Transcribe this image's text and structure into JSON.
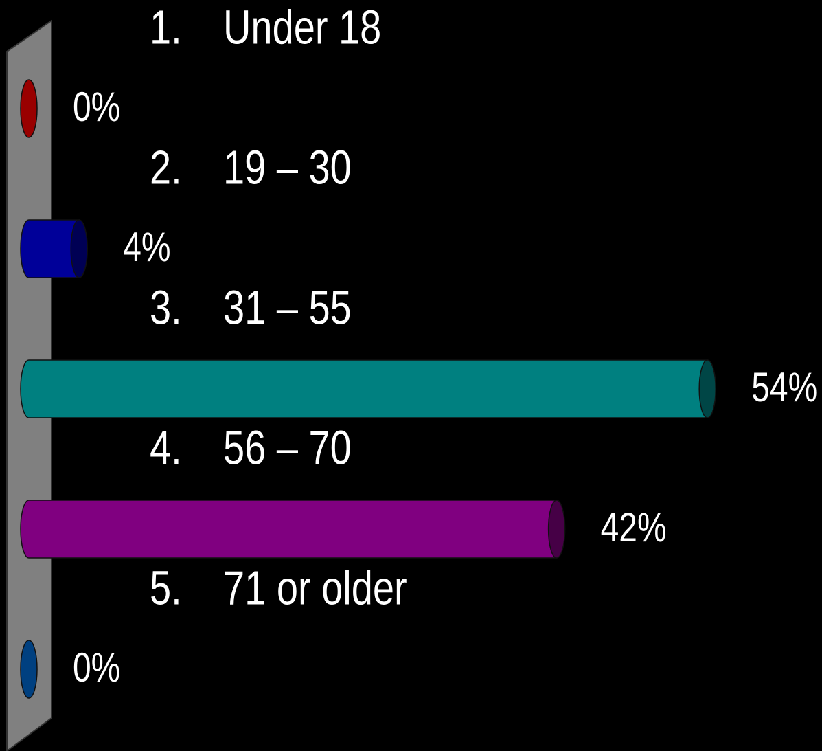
{
  "chart_data": {
    "type": "bar",
    "orientation": "horizontal",
    "category_numbers": [
      "1.",
      "2.",
      "3.",
      "4.",
      "5."
    ],
    "categories": [
      "Under 18",
      "19 – 30",
      "31 – 55",
      "56 – 70",
      "71 or older"
    ],
    "values": [
      0,
      4,
      54,
      42,
      0
    ],
    "value_labels": [
      "0%",
      "4%",
      "54%",
      "42%",
      "0%"
    ],
    "colors": [
      "#990000",
      "#000099",
      "#008080",
      "#800080",
      "#004080"
    ]
  }
}
